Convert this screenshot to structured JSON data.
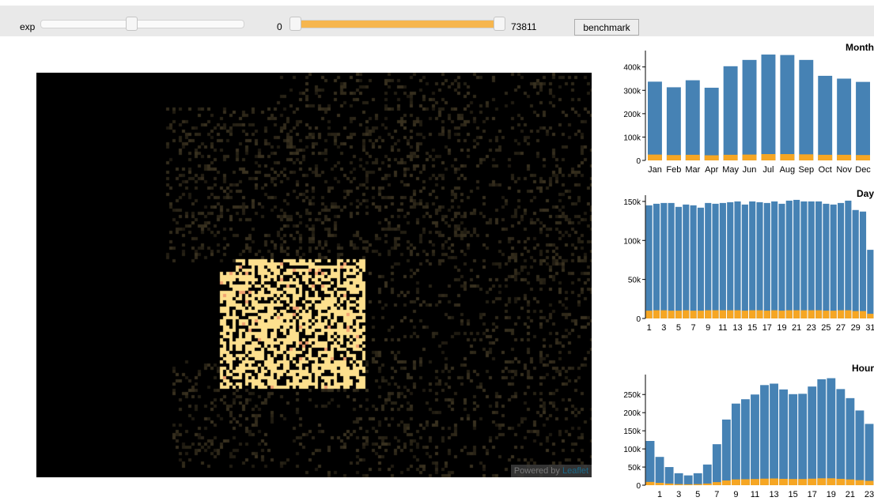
{
  "toolbar": {
    "exp_label": "exp",
    "exp_value": 0.45,
    "range_min_label": "0",
    "range_max_label": "73811",
    "range_fill": [
      0,
      1
    ],
    "benchmark_label": "benchmark"
  },
  "map": {
    "attribution_prefix": "Powered by",
    "attribution_link": "Leaflet",
    "colors": {
      "background": "#000000",
      "dim": "#3a3220",
      "highlight": "#fde08e",
      "hot": "#f0a070"
    }
  },
  "colors": {
    "total": "#4682b4",
    "selected": "#f6a623",
    "range": "#f6b64e"
  },
  "chart_data": [
    {
      "type": "bar",
      "title": "Month",
      "categories": [
        "Jan",
        "Feb",
        "Mar",
        "Apr",
        "May",
        "Jun",
        "Jul",
        "Aug",
        "Sep",
        "Oct",
        "Nov",
        "Dec"
      ],
      "series": [
        {
          "values": [
            337000,
            313000,
            343000,
            311000,
            403000,
            430000,
            453000,
            451000,
            430000,
            362000,
            350000,
            336000
          ]
        },
        {
          "values": [
            25000,
            23000,
            24000,
            22000,
            24000,
            25000,
            27000,
            27000,
            26000,
            24000,
            24000,
            23000
          ]
        }
      ],
      "yticks": [
        "0",
        "100k",
        "200k",
        "300k",
        "400k"
      ],
      "ylim": [
        0,
        470000
      ]
    },
    {
      "type": "bar",
      "title": "Day",
      "categories": [
        "1",
        "2",
        "3",
        "4",
        "5",
        "6",
        "7",
        "8",
        "9",
        "10",
        "11",
        "12",
        "13",
        "14",
        "15",
        "16",
        "17",
        "18",
        "19",
        "20",
        "21",
        "22",
        "23",
        "24",
        "25",
        "26",
        "27",
        "28",
        "29",
        "30",
        "31"
      ],
      "xtick_labels": [
        "1",
        "3",
        "5",
        "7",
        "9",
        "11",
        "13",
        "15",
        "17",
        "19",
        "21",
        "23",
        "25",
        "27",
        "29",
        "31"
      ],
      "series": [
        {
          "values": [
            145000,
            147000,
            148000,
            148000,
            143000,
            146000,
            145000,
            142000,
            148000,
            147000,
            148000,
            149000,
            150000,
            146000,
            150000,
            149000,
            148000,
            150000,
            147000,
            151000,
            152000,
            150000,
            150000,
            150000,
            147000,
            146000,
            148000,
            151000,
            139000,
            137000,
            88000
          ]
        },
        {
          "values": [
            10000,
            10500,
            10500,
            10000,
            10000,
            10500,
            10000,
            10000,
            10500,
            10500,
            10500,
            10500,
            10500,
            10000,
            10500,
            10500,
            10000,
            10500,
            10000,
            10500,
            10500,
            10500,
            10500,
            10500,
            10000,
            10000,
            10500,
            10500,
            9500,
            9500,
            6000
          ]
        }
      ],
      "yticks": [
        "0",
        "50k",
        "100k",
        "150k"
      ],
      "ylim": [
        0,
        158000
      ]
    },
    {
      "type": "bar",
      "title": "Hour",
      "categories": [
        "0",
        "1",
        "2",
        "3",
        "4",
        "5",
        "6",
        "7",
        "8",
        "9",
        "10",
        "11",
        "12",
        "13",
        "14",
        "15",
        "16",
        "17",
        "18",
        "19",
        "20",
        "21",
        "22",
        "23"
      ],
      "xtick_labels": [
        "1",
        "3",
        "5",
        "7",
        "9",
        "11",
        "13",
        "15",
        "17",
        "19",
        "21",
        "23"
      ],
      "series": [
        {
          "values": [
            122000,
            78000,
            50000,
            33000,
            27000,
            33000,
            57000,
            113000,
            181000,
            225000,
            237000,
            250000,
            276000,
            280000,
            264000,
            251000,
            252000,
            272000,
            292000,
            295000,
            265000,
            240000,
            206000,
            169000
          ]
        },
        {
          "values": [
            9000,
            6500,
            4500,
            3000,
            2500,
            3000,
            4500,
            8500,
            13000,
            16000,
            16500,
            17000,
            18000,
            18500,
            17500,
            17000,
            17000,
            18000,
            19000,
            19000,
            17500,
            16000,
            14000,
            12000
          ]
        }
      ],
      "yticks": [
        "0",
        "50k",
        "100k",
        "150k",
        "200k",
        "250k"
      ],
      "ylim": [
        0,
        305000
      ]
    }
  ]
}
